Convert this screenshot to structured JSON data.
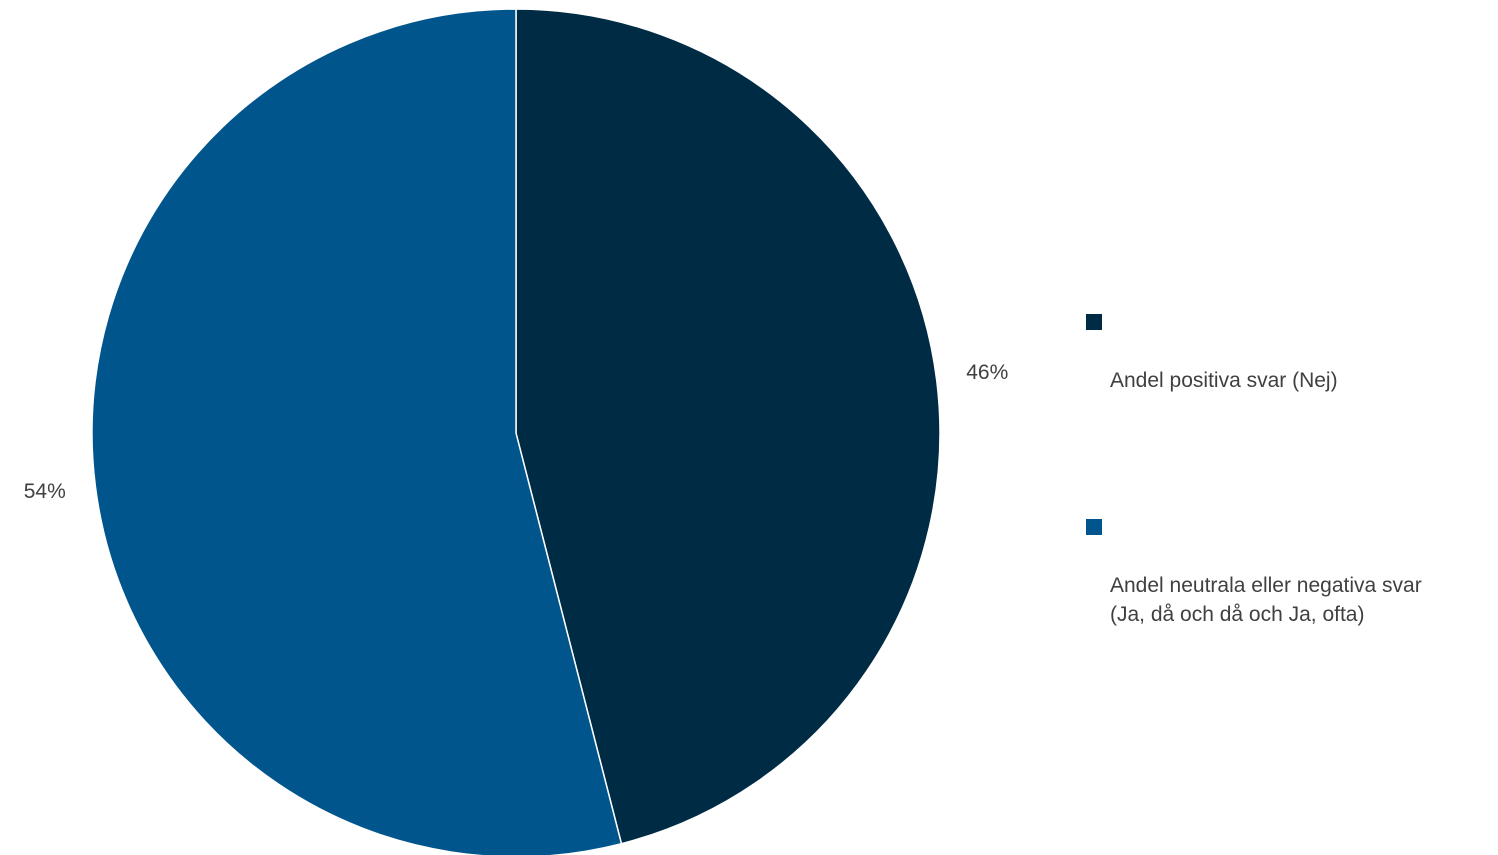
{
  "chart_data": {
    "type": "pie",
    "start_angle_deg": 0,
    "direction": "clockwise",
    "slices": [
      {
        "label": "Andel positiva svar (Nej)",
        "value": 46,
        "display": "46%",
        "color": "#002b45"
      },
      {
        "label": "Andel neutrala eller negativa svar\n(Ja, då och då och Ja, ofta)",
        "value": 54,
        "display": "54%",
        "color": "#00558c"
      }
    ],
    "legend": {
      "placement": "right",
      "items": [
        {
          "label": "Andel positiva svar (Nej)",
          "color": "#002b45"
        },
        {
          "label": "Andel neutrala eller negativa svar\n(Ja, då och då och Ja, ofta)",
          "color": "#00558c"
        }
      ]
    }
  }
}
